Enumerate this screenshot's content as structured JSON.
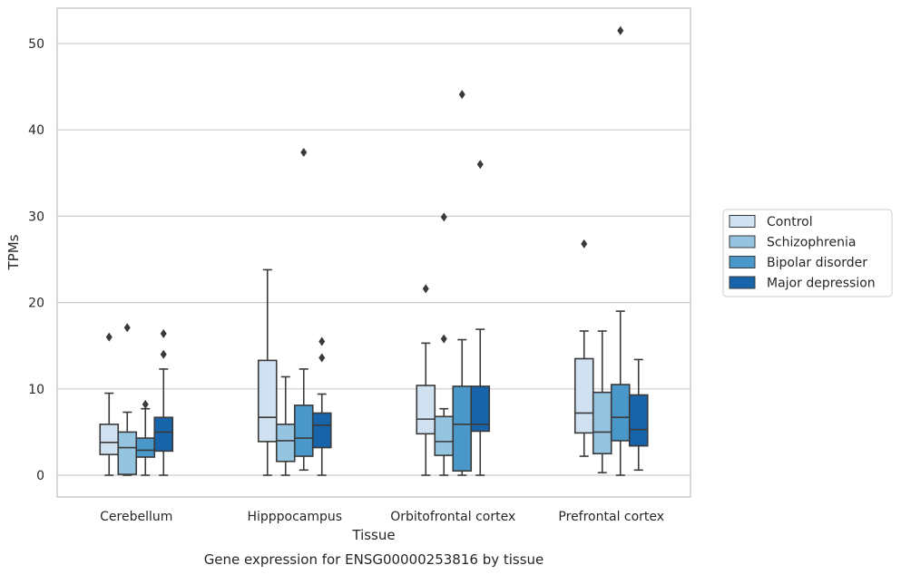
{
  "chart_data": {
    "type": "boxplot",
    "caption": "Gene expression for ENSG00000253816 by tissue",
    "xlabel": "Tissue",
    "ylabel": "TPMs",
    "ylim": [
      -2.5,
      54
    ],
    "yticks": [
      0,
      10,
      20,
      30,
      40,
      50
    ],
    "grid": "horizontal",
    "legend_position": "right",
    "categories": [
      "Cerebellum",
      "Hipppocampus",
      "Orbitofrontal cortex",
      "Prefrontal cortex"
    ],
    "series": [
      {
        "name": "Control",
        "color": "#d0e1f2",
        "boxes": [
          {
            "whislo": 0,
            "q1": 2.4,
            "med": 3.8,
            "q3": 5.9,
            "whishi": 9.5,
            "fliers": [
              16.0
            ]
          },
          {
            "whislo": 0,
            "q1": 3.9,
            "med": 6.7,
            "q3": 13.3,
            "whishi": 23.8,
            "fliers": []
          },
          {
            "whislo": 0,
            "q1": 4.8,
            "med": 6.5,
            "q3": 10.4,
            "whishi": 15.3,
            "fliers": [
              21.6
            ]
          },
          {
            "whislo": 2.2,
            "q1": 4.9,
            "med": 7.2,
            "q3": 13.5,
            "whishi": 16.7,
            "fliers": [
              26.8
            ]
          }
        ]
      },
      {
        "name": "Schizophrenia",
        "color": "#94c4df",
        "boxes": [
          {
            "whislo": 0,
            "q1": 0.1,
            "med": 3.2,
            "q3": 5.0,
            "whishi": 7.3,
            "fliers": [
              17.1
            ]
          },
          {
            "whislo": 0,
            "q1": 1.6,
            "med": 4.0,
            "q3": 5.9,
            "whishi": 11.4,
            "fliers": []
          },
          {
            "whislo": 0,
            "q1": 2.3,
            "med": 3.9,
            "q3": 6.8,
            "whishi": 7.7,
            "fliers": [
              15.8,
              29.9
            ]
          },
          {
            "whislo": 0.3,
            "q1": 2.5,
            "med": 5.0,
            "q3": 9.6,
            "whishi": 16.7,
            "fliers": []
          }
        ]
      },
      {
        "name": "Bipolar disorder",
        "color": "#4a98c9",
        "boxes": [
          {
            "whislo": 0,
            "q1": 2.1,
            "med": 2.9,
            "q3": 4.3,
            "whishi": 7.7,
            "fliers": [
              8.2
            ]
          },
          {
            "whislo": 0.6,
            "q1": 2.2,
            "med": 4.3,
            "q3": 8.1,
            "whishi": 12.3,
            "fliers": [
              37.4
            ]
          },
          {
            "whislo": 0,
            "q1": 0.5,
            "med": 5.9,
            "q3": 10.3,
            "whishi": 15.7,
            "fliers": [
              44.1
            ]
          },
          {
            "whislo": 0,
            "q1": 4.0,
            "med": 6.7,
            "q3": 10.5,
            "whishi": 19.0,
            "fliers": [
              51.5
            ]
          }
        ]
      },
      {
        "name": "Major depression",
        "color": "#1764ab",
        "boxes": [
          {
            "whislo": 0,
            "q1": 2.8,
            "med": 5.0,
            "q3": 6.7,
            "whishi": 12.3,
            "fliers": [
              14.0,
              16.4
            ]
          },
          {
            "whislo": 0,
            "q1": 3.2,
            "med": 5.8,
            "q3": 7.2,
            "whishi": 9.4,
            "fliers": [
              13.6,
              15.5
            ]
          },
          {
            "whislo": 0,
            "q1": 5.1,
            "med": 5.9,
            "q3": 10.3,
            "whishi": 16.9,
            "fliers": [
              36.0
            ]
          },
          {
            "whislo": 0.6,
            "q1": 3.4,
            "med": 5.3,
            "q3": 9.3,
            "whishi": 13.4,
            "fliers": []
          }
        ]
      }
    ]
  }
}
